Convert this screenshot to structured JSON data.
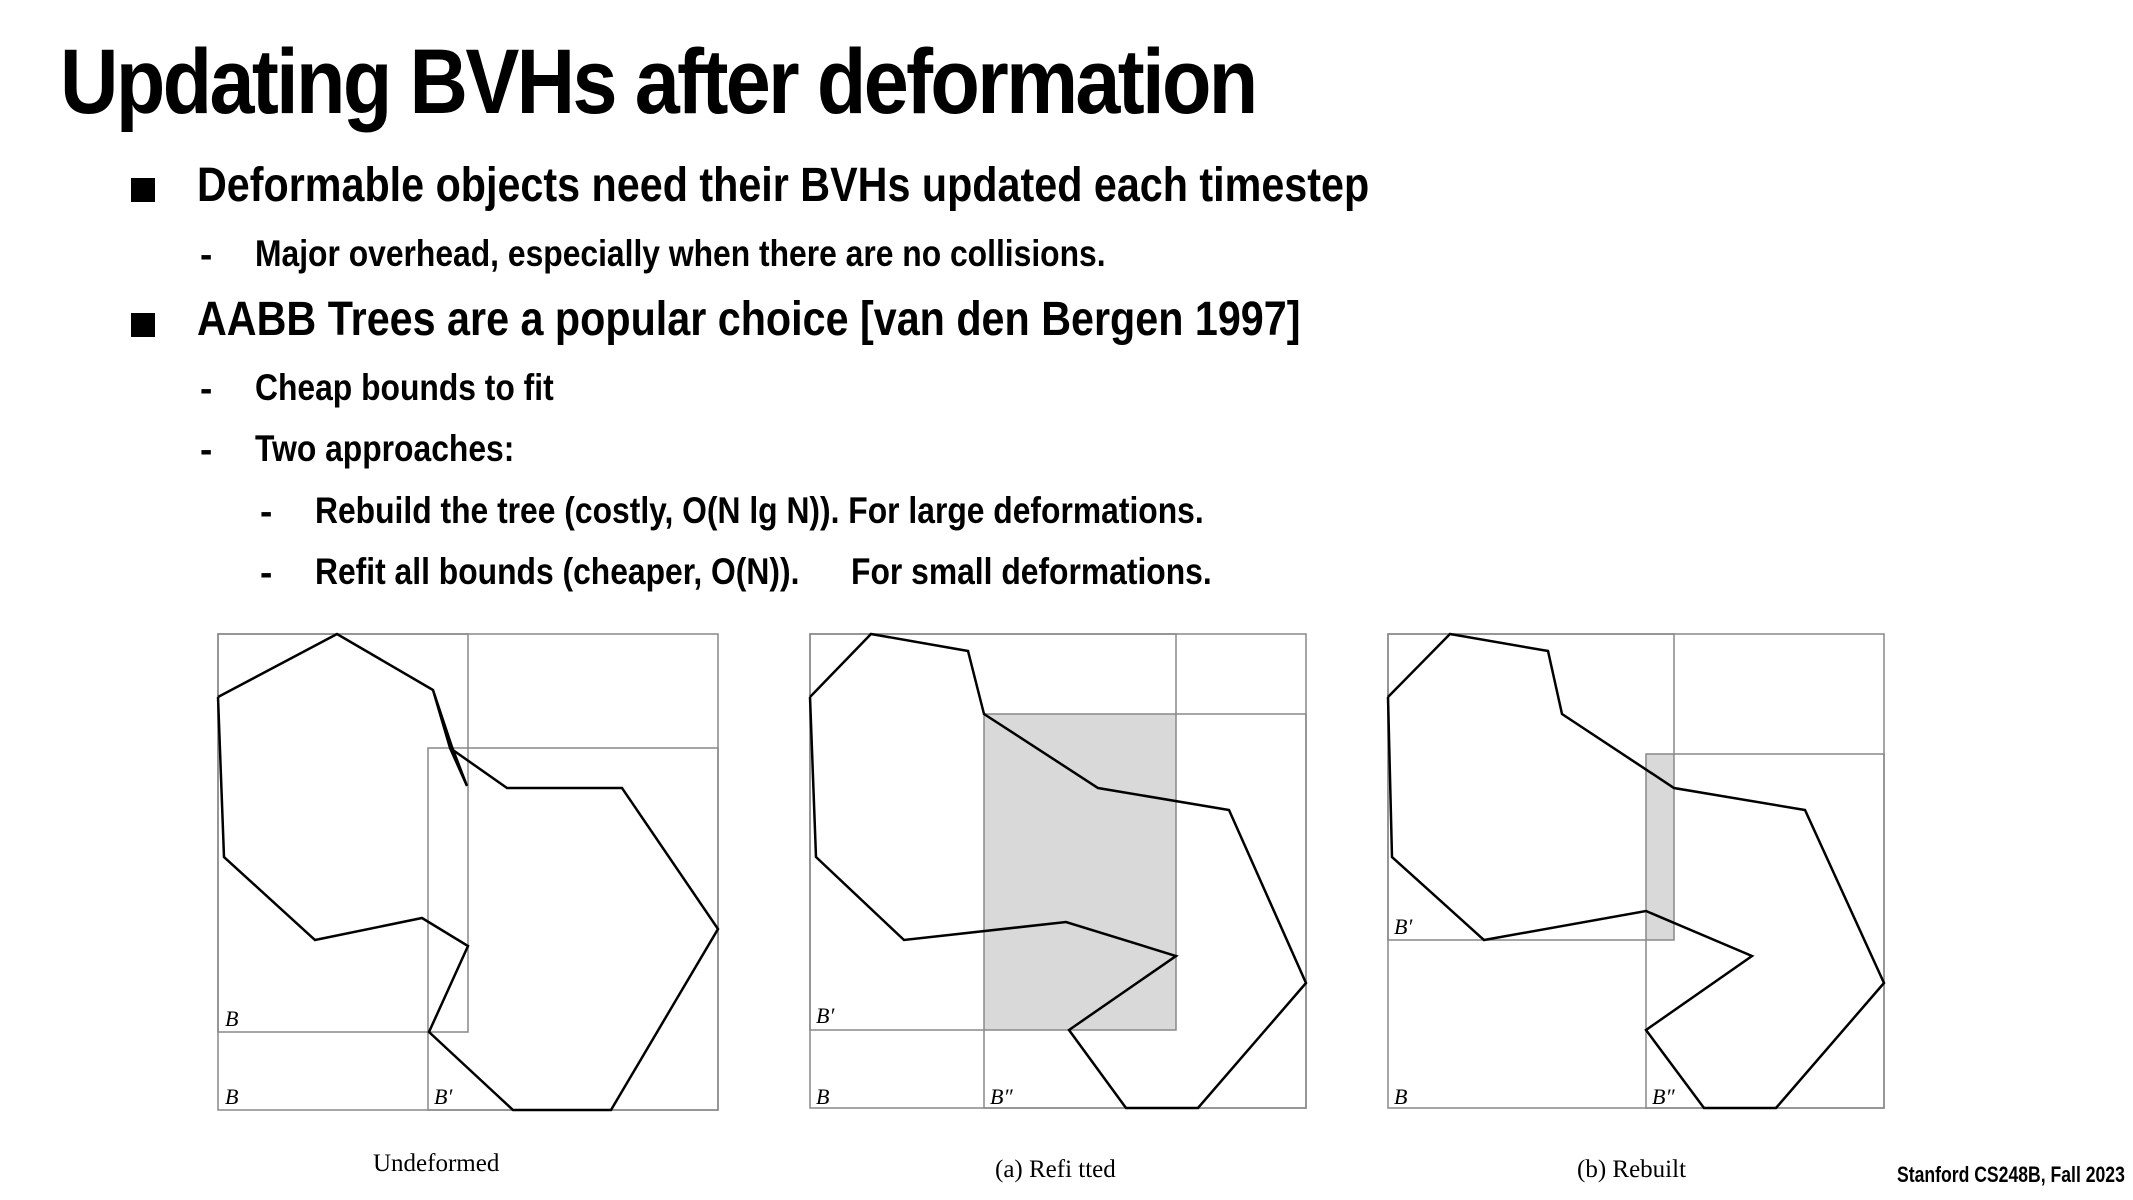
{
  "slide": {
    "title": "Updating BVHs after deformation",
    "bullets": [
      {
        "text": "Deformable objects need their BVHs updated each timestep",
        "level": 1
      },
      {
        "text": "Major overhead, especially when there are no collisions.",
        "level": 2
      },
      {
        "text": "AABB Trees are a popular choice [van den Bergen 1997]",
        "level": 1
      },
      {
        "text": "Cheap bounds to fit",
        "level": 2
      },
      {
        "text": "Two approaches:",
        "level": 2
      },
      {
        "text": "Rebuild the tree (costly, O(N lg N)).  For large deformations.",
        "level": 3
      },
      {
        "text": "Refit all bounds (cheaper, O(N)).",
        "level": 3,
        "suffix": "For small deformations."
      }
    ],
    "bullet_marker": "-",
    "footer": "Stanford CS248B, Fall 2023"
  },
  "figures": {
    "captions": [
      "Undeformed",
      "(a) Refi tted",
      "(b) Rebuilt"
    ],
    "labels": [
      "B",
      "B",
      "B′",
      "B′",
      "B",
      "B″",
      "B′",
      "B",
      "B″"
    ],
    "highlight_color": "#d9d9d9",
    "line_color": "#000000",
    "box_color": "#888888"
  }
}
